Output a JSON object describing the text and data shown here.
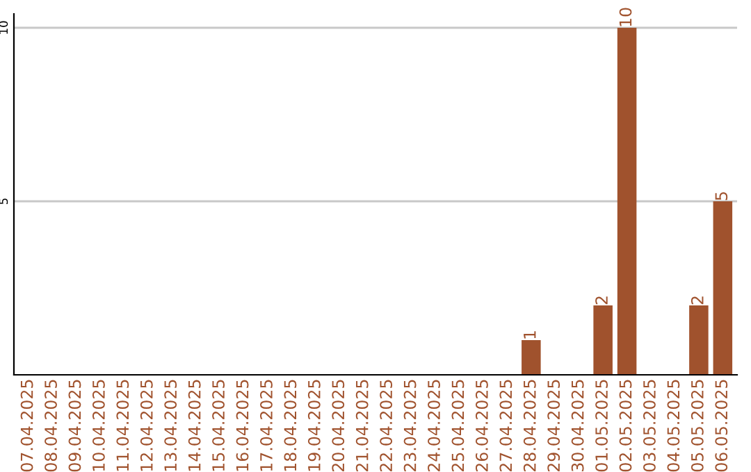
{
  "chart_data": {
    "type": "bar",
    "categories": [
      "07.04.2025",
      "08.04.2025",
      "09.04.2025",
      "10.04.2025",
      "11.04.2025",
      "12.04.2025",
      "13.04.2025",
      "14.04.2025",
      "15.04.2025",
      "16.04.2025",
      "17.04.2025",
      "18.04.2025",
      "19.04.2025",
      "20.04.2025",
      "21.04.2025",
      "22.04.2025",
      "23.04.2025",
      "24.04.2025",
      "25.04.2025",
      "26.04.2025",
      "27.04.2025",
      "28.04.2025",
      "29.04.2025",
      "30.04.2025",
      "01.05.2025",
      "02.05.2025",
      "03.05.2025",
      "04.05.2025",
      "05.05.2025",
      "06.05.2025"
    ],
    "values": [
      0,
      0,
      0,
      0,
      0,
      0,
      0,
      0,
      0,
      0,
      0,
      0,
      0,
      0,
      0,
      0,
      0,
      0,
      0,
      0,
      0,
      1,
      0,
      0,
      2,
      10,
      0,
      0,
      2,
      5
    ],
    "value_labels": [
      null,
      null,
      null,
      null,
      null,
      null,
      null,
      null,
      null,
      null,
      null,
      null,
      null,
      null,
      null,
      null,
      null,
      null,
      null,
      null,
      null,
      "1",
      null,
      null,
      "2",
      "10",
      null,
      null,
      "2",
      "5"
    ],
    "color": "#a0522d",
    "ylim": [
      0,
      10.4
    ],
    "yticks": [
      5,
      10
    ],
    "grid": "y"
  }
}
